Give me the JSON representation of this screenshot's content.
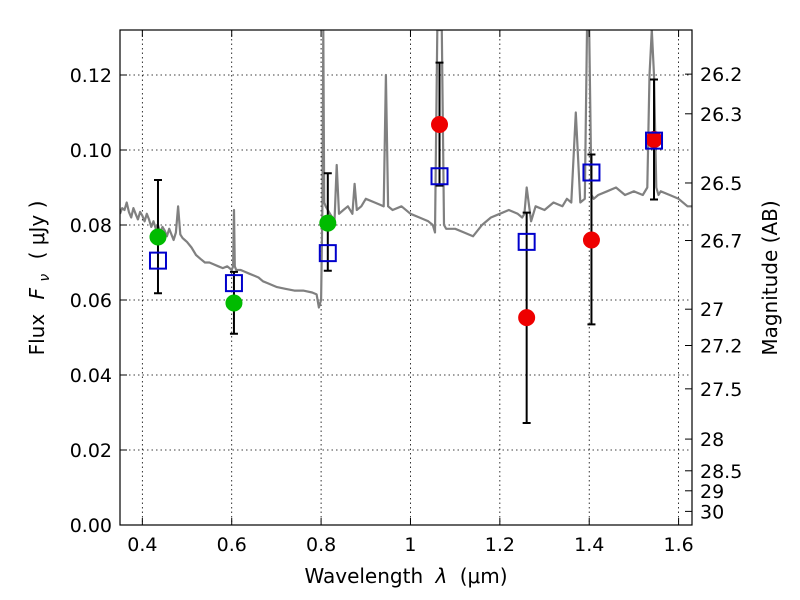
{
  "chart_data": {
    "type": "scatter",
    "xlabel_text": "Wavelength",
    "xlabel_var": "λ",
    "xlabel_unit": "(μm)",
    "ylabel_text": "Flux",
    "ylabel_var": "F",
    "ylabel_sub": "ν",
    "ylabel_unit": "( μJy )",
    "y2label": "Magnitude (AB)",
    "xlim": [
      0.35,
      1.63
    ],
    "ylim": [
      0.0,
      0.132
    ],
    "grid": true,
    "x_ticks": [
      0.4,
      0.6,
      0.8,
      1.0,
      1.2,
      1.4,
      1.6
    ],
    "x_tick_labels": [
      "0.4",
      "0.6",
      "0.8",
      "1",
      "1.2",
      "1.4",
      "1.6"
    ],
    "y_ticks": [
      0.0,
      0.02,
      0.04,
      0.06,
      0.08,
      0.1,
      0.12
    ],
    "y_tick_labels": [
      "0.00",
      "0.02",
      "0.04",
      "0.06",
      "0.08",
      "0.10",
      "0.12"
    ],
    "mag_ticks": [
      26.2,
      26.3,
      26.5,
      26.7,
      27,
      27.2,
      27.5,
      28,
      28.5,
      29,
      30
    ],
    "mag_tick_labels": [
      "26.2",
      "26.3",
      "26.5",
      "26.7",
      "27",
      "27.2",
      "27.5",
      "28",
      "28.5",
      "29",
      "30"
    ],
    "colors": {
      "spectrum": "#808080",
      "model": "#0000cc",
      "observed_a": "#00bb00",
      "observed_b": "#ee0000",
      "errorbar": "#000000"
    },
    "model_points": {
      "marker": "open-square",
      "x": [
        0.435,
        0.605,
        0.815,
        1.065,
        1.26,
        1.405,
        1.545
      ],
      "y": [
        0.0705,
        0.0645,
        0.0725,
        0.093,
        0.0755,
        0.094,
        0.1025
      ]
    },
    "observed_points_a": {
      "marker": "filled-circle",
      "x": [
        0.435,
        0.605,
        0.815
      ],
      "y": [
        0.0768,
        0.0592,
        0.0805
      ]
    },
    "observed_points_b": {
      "marker": "filled-circle",
      "x": [
        1.065,
        1.26,
        1.405,
        1.545
      ],
      "y": [
        0.1068,
        0.0553,
        0.076,
        0.1028
      ]
    },
    "errorbars": {
      "x": [
        0.435,
        0.605,
        0.815,
        1.065,
        1.26,
        1.405,
        1.545
      ],
      "low": [
        0.0618,
        0.051,
        0.0678,
        0.0905,
        0.0272,
        0.0535,
        0.0868
      ],
      "high": [
        0.092,
        0.0675,
        0.0938,
        0.1233,
        0.0833,
        0.0988,
        0.1188
      ]
    },
    "spectrum": {
      "x": [
        0.35,
        0.355,
        0.36,
        0.365,
        0.37,
        0.375,
        0.38,
        0.385,
        0.39,
        0.395,
        0.4,
        0.405,
        0.41,
        0.415,
        0.42,
        0.425,
        0.43,
        0.435,
        0.44,
        0.445,
        0.45,
        0.455,
        0.46,
        0.465,
        0.47,
        0.475,
        0.48,
        0.485,
        0.49,
        0.495,
        0.5,
        0.51,
        0.52,
        0.53,
        0.54,
        0.55,
        0.56,
        0.57,
        0.58,
        0.59,
        0.6,
        0.603,
        0.605,
        0.607,
        0.61,
        0.62,
        0.63,
        0.64,
        0.65,
        0.66,
        0.67,
        0.68,
        0.69,
        0.7,
        0.72,
        0.74,
        0.76,
        0.78,
        0.79,
        0.795,
        0.8,
        0.803,
        0.805,
        0.807,
        0.81,
        0.815,
        0.82,
        0.825,
        0.83,
        0.835,
        0.84,
        0.85,
        0.86,
        0.87,
        0.875,
        0.88,
        0.89,
        0.9,
        0.92,
        0.94,
        0.945,
        0.95,
        0.96,
        0.98,
        1.0,
        1.02,
        1.04,
        1.05,
        1.055,
        1.06,
        1.065,
        1.07,
        1.075,
        1.08,
        1.1,
        1.12,
        1.14,
        1.16,
        1.18,
        1.2,
        1.22,
        1.24,
        1.25,
        1.255,
        1.26,
        1.27,
        1.28,
        1.3,
        1.32,
        1.34,
        1.35,
        1.36,
        1.37,
        1.38,
        1.39,
        1.395,
        1.4,
        1.405,
        1.41,
        1.42,
        1.44,
        1.46,
        1.48,
        1.5,
        1.52,
        1.53,
        1.535,
        1.54,
        1.545,
        1.55,
        1.555,
        1.56,
        1.58,
        1.6,
        1.62,
        1.63
      ],
      "y": [
        0.083,
        0.0845,
        0.084,
        0.086,
        0.0835,
        0.082,
        0.0845,
        0.083,
        0.0815,
        0.0835,
        0.0825,
        0.081,
        0.083,
        0.0815,
        0.0795,
        0.081,
        0.079,
        0.08,
        0.078,
        0.0795,
        0.0785,
        0.077,
        0.079,
        0.0775,
        0.076,
        0.078,
        0.085,
        0.0775,
        0.0765,
        0.076,
        0.0755,
        0.074,
        0.072,
        0.071,
        0.07,
        0.07,
        0.0695,
        0.069,
        0.0685,
        0.069,
        0.068,
        0.069,
        0.084,
        0.069,
        0.068,
        0.068,
        0.0675,
        0.067,
        0.0665,
        0.066,
        0.065,
        0.0645,
        0.064,
        0.0635,
        0.063,
        0.0625,
        0.0625,
        0.062,
        0.0615,
        0.058,
        0.06,
        0.085,
        0.132,
        0.086,
        0.085,
        0.084,
        0.083,
        0.082,
        0.081,
        0.096,
        0.083,
        0.084,
        0.085,
        0.083,
        0.091,
        0.084,
        0.085,
        0.087,
        0.086,
        0.085,
        0.12,
        0.085,
        0.084,
        0.085,
        0.083,
        0.082,
        0.081,
        0.08,
        0.078,
        0.132,
        0.132,
        0.132,
        0.08,
        0.079,
        0.079,
        0.078,
        0.077,
        0.08,
        0.082,
        0.083,
        0.084,
        0.083,
        0.082,
        0.083,
        0.09,
        0.081,
        0.085,
        0.084,
        0.086,
        0.085,
        0.087,
        0.086,
        0.11,
        0.086,
        0.087,
        0.132,
        0.132,
        0.088,
        0.087,
        0.088,
        0.089,
        0.09,
        0.088,
        0.089,
        0.088,
        0.09,
        0.12,
        0.132,
        0.12,
        0.09,
        0.088,
        0.089,
        0.088,
        0.087,
        0.085,
        0.085
      ]
    }
  }
}
